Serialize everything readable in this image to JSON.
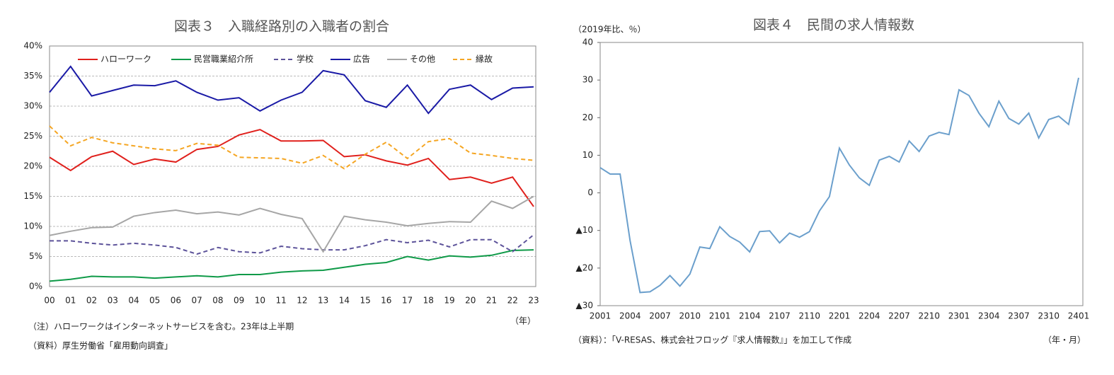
{
  "chart_data": [
    {
      "type": "line",
      "title": "図表３　入職経路別の入職者の割合",
      "categories": [
        "00",
        "01",
        "02",
        "03",
        "04",
        "05",
        "06",
        "07",
        "08",
        "09",
        "10",
        "11",
        "12",
        "13",
        "14",
        "15",
        "16",
        "17",
        "18",
        "19",
        "20",
        "21",
        "22",
        "23"
      ],
      "x_unit": "（年）",
      "ylim": [
        0,
        40
      ],
      "yticks": [
        {
          "value": 0,
          "label": "0%"
        },
        {
          "value": 5,
          "label": "5%"
        },
        {
          "value": 10,
          "label": "10%"
        },
        {
          "value": 15,
          "label": "15%"
        },
        {
          "value": 20,
          "label": "20%"
        },
        {
          "value": 25,
          "label": "25%"
        },
        {
          "value": 30,
          "label": "30%"
        },
        {
          "value": 35,
          "label": "35%"
        },
        {
          "value": 40,
          "label": "40%"
        }
      ],
      "grid": true,
      "legend": "top",
      "series": [
        {
          "name": "ハローワーク",
          "color": "#e0201c",
          "dashed": false,
          "values": [
            21.5,
            19.3,
            21.6,
            22.5,
            20.3,
            21.2,
            20.7,
            22.8,
            23.3,
            25.2,
            26.1,
            24.2,
            24.2,
            24.3,
            21.6,
            21.9,
            20.9,
            20.2,
            21.3,
            17.8,
            18.2,
            17.2,
            18.2,
            13.3
          ]
        },
        {
          "name": "民営職業紹介所",
          "color": "#0f9a48",
          "dashed": false,
          "values": [
            0.9,
            1.2,
            1.7,
            1.6,
            1.6,
            1.4,
            1.6,
            1.8,
            1.6,
            2.0,
            2.0,
            2.4,
            2.6,
            2.7,
            3.2,
            3.7,
            4.0,
            5.0,
            4.4,
            5.1,
            4.9,
            5.2,
            6.0,
            6.1
          ]
        },
        {
          "name": "学校",
          "color": "#5d539a",
          "dashed": true,
          "values": [
            7.6,
            7.6,
            7.2,
            6.9,
            7.2,
            6.9,
            6.5,
            5.4,
            6.5,
            5.8,
            5.6,
            6.7,
            6.3,
            6.1,
            6.1,
            6.8,
            7.8,
            7.3,
            7.7,
            6.6,
            7.8,
            7.8,
            5.8,
            8.6
          ]
        },
        {
          "name": "広告",
          "color": "#1a1aa6",
          "dashed": false,
          "values": [
            32.3,
            36.6,
            31.7,
            32.6,
            33.5,
            33.4,
            34.2,
            32.3,
            31.0,
            31.4,
            29.2,
            31.0,
            32.3,
            35.9,
            35.2,
            30.9,
            29.8,
            33.5,
            28.8,
            32.8,
            33.5,
            31.1,
            33.0,
            33.2
          ]
        },
        {
          "name": "その他",
          "color": "#a6a6a6",
          "dashed": false,
          "values": [
            8.5,
            9.2,
            9.8,
            9.9,
            11.7,
            12.3,
            12.7,
            12.1,
            12.4,
            11.9,
            13.0,
            12.0,
            11.3,
            5.8,
            11.7,
            11.1,
            10.7,
            10.1,
            10.5,
            10.8,
            10.7,
            14.2,
            13.0,
            15.0
          ]
        },
        {
          "name": "縁故",
          "color": "#f5a623",
          "dashed": true,
          "values": [
            26.7,
            23.4,
            24.8,
            23.9,
            23.4,
            22.9,
            22.6,
            23.8,
            23.5,
            21.5,
            21.4,
            21.3,
            20.5,
            21.8,
            19.6,
            22.0,
            24.0,
            21.3,
            24.1,
            24.6,
            22.2,
            21.8,
            21.3,
            21.0
          ]
        }
      ],
      "notes": [
        "（注）ハローワークはインターネットサービスを含む。23年は上半期",
        "（資料）厚生労働省「雇用動向調査」"
      ]
    },
    {
      "type": "line",
      "title": "図表４　民間の求人情報数",
      "y_unit": "（2019年比、％）",
      "x_unit": "（年・月）",
      "categories": [
        "2001",
        null,
        null,
        "2004",
        null,
        null,
        "2007",
        null,
        null,
        "2010",
        null,
        null,
        "2101",
        null,
        null,
        "2104",
        null,
        null,
        "2107",
        null,
        null,
        "2110",
        null,
        null,
        "2201",
        null,
        null,
        "2204",
        null,
        null,
        "2207",
        null,
        null,
        "2210",
        null,
        null,
        "2301",
        null,
        null,
        "2304",
        null,
        null,
        "2307",
        null,
        null,
        "2310",
        null,
        null,
        "2401"
      ],
      "ylim": [
        -30,
        40
      ],
      "yticks": [
        {
          "value": -30,
          "label": "▲30"
        },
        {
          "value": -20,
          "label": "▲20"
        },
        {
          "value": -10,
          "label": "▲10"
        },
        0,
        10,
        20,
        30,
        40
      ],
      "grid": false,
      "color": "#6b9fcc",
      "values": [
        6.7,
        5.0,
        5.0,
        -12.7,
        -26.5,
        -26.3,
        -24.6,
        -22.0,
        -24.8,
        -21.6,
        -14.4,
        -14.8,
        -9.0,
        -11.6,
        -13.1,
        -15.7,
        -10.3,
        -10.1,
        -13.3,
        -10.7,
        -11.8,
        -10.3,
        -4.8,
        -1.0,
        11.9,
        7.4,
        4.0,
        2.0,
        8.7,
        9.7,
        8.2,
        13.8,
        11.0,
        15.1,
        16.1,
        15.5,
        27.4,
        25.9,
        21.2,
        17.6,
        24.4,
        19.8,
        18.3,
        21.2,
        14.6,
        19.5,
        20.4,
        18.2,
        30.6
      ],
      "source": "（資料）：「V-RESAS、株式会社フロッグ『求人情報数』」を加工して作成"
    }
  ]
}
